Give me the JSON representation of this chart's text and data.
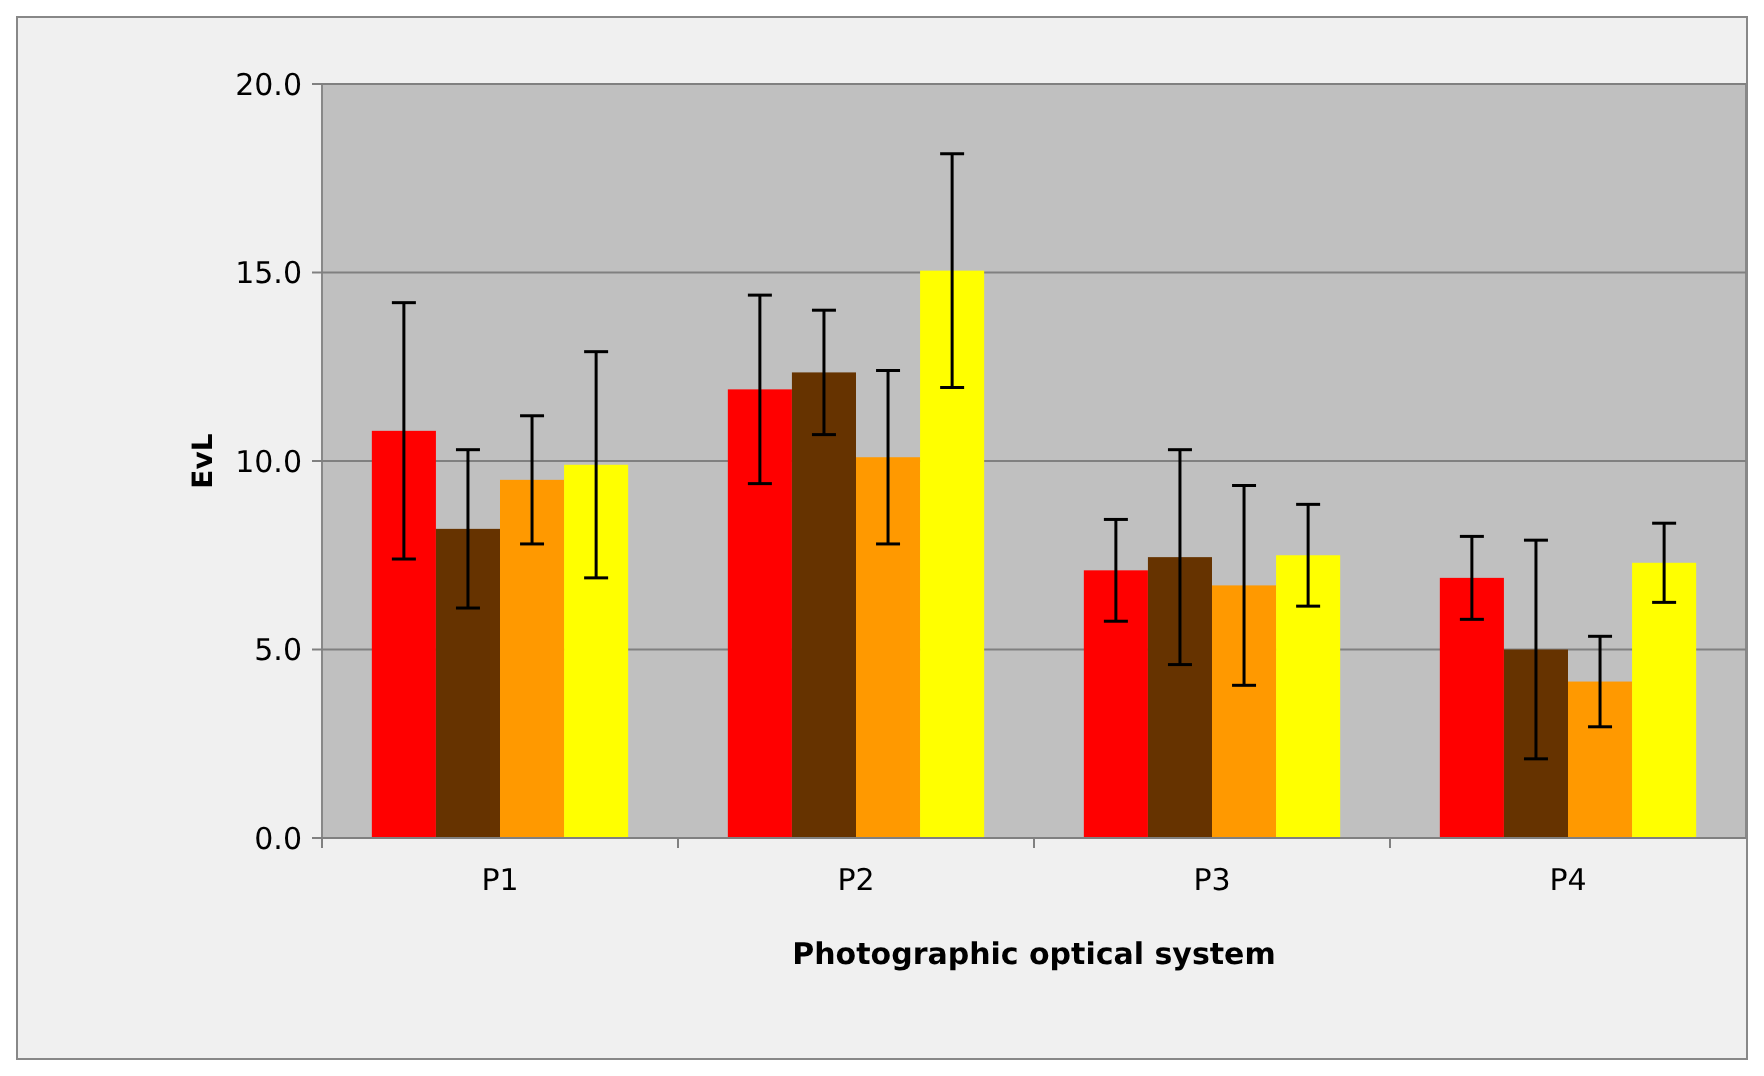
{
  "chart_data": {
    "type": "bar",
    "xlabel": "Photographic optical system",
    "ylabel": "EvL",
    "categories": [
      "P1",
      "P2",
      "P3",
      "P4"
    ],
    "series": [
      {
        "color": "#ff0000",
        "values": [
          10.8,
          11.9,
          7.1,
          6.9
        ],
        "errors": [
          3.4,
          2.5,
          1.35,
          1.1
        ]
      },
      {
        "color": "#663300",
        "values": [
          8.2,
          12.35,
          7.45,
          5.0
        ],
        "errors": [
          2.1,
          1.65,
          2.85,
          2.9
        ]
      },
      {
        "color": "#ff9900",
        "values": [
          9.5,
          10.1,
          6.7,
          4.15
        ],
        "errors": [
          1.7,
          2.3,
          2.65,
          1.2
        ]
      },
      {
        "color": "#ffff00",
        "values": [
          9.9,
          15.05,
          7.5,
          7.3
        ],
        "errors": [
          3.0,
          3.1,
          1.35,
          1.05
        ]
      }
    ],
    "ylim": [
      0,
      20
    ],
    "yticks": [
      {
        "value": 0,
        "label": "0.0"
      },
      {
        "value": 5,
        "label": "5.0"
      },
      {
        "value": 10,
        "label": "10.0"
      },
      {
        "value": 15,
        "label": "15.0"
      },
      {
        "value": 20,
        "label": "20.0"
      }
    ],
    "grid": "y"
  }
}
